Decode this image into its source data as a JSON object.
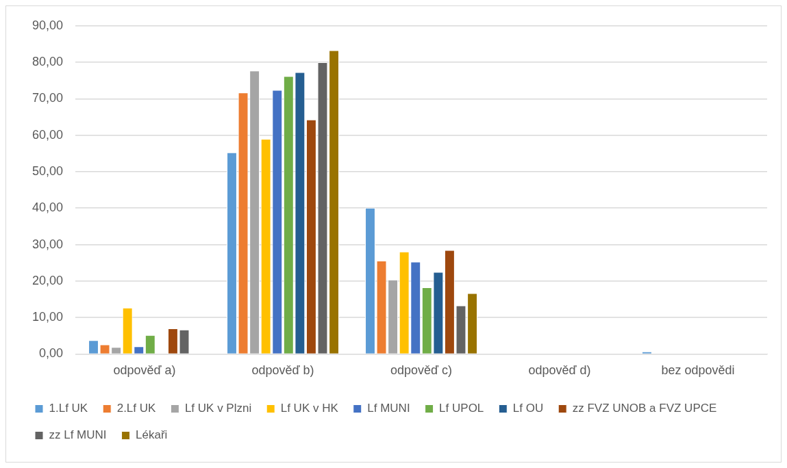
{
  "chart_data": {
    "type": "bar",
    "categories": [
      "odpověď a)",
      "odpověď b)",
      "odpověď c)",
      "odpověď d)",
      "bez odpovědi"
    ],
    "series": [
      {
        "name": "1.Lf UK",
        "color": "#5b9bd5",
        "values": [
          3.8,
          55.3,
          40.1,
          0,
          0.7
        ]
      },
      {
        "name": "2.Lf UK",
        "color": "#ed7d31",
        "values": [
          2.6,
          71.7,
          25.6,
          0,
          0
        ]
      },
      {
        "name": "Lf UK v Plzni",
        "color": "#a5a5a5",
        "values": [
          1.9,
          77.7,
          20.4,
          0,
          0
        ]
      },
      {
        "name": "Lf UK v HK",
        "color": "#ffc000",
        "values": [
          12.7,
          59.0,
          28.1,
          0,
          0
        ]
      },
      {
        "name": "Lf MUNI",
        "color": "#4472c4",
        "values": [
          2.1,
          72.4,
          25.3,
          0,
          0
        ]
      },
      {
        "name": "Lf UPOL",
        "color": "#70ad47",
        "values": [
          5.2,
          76.2,
          18.3,
          0,
          0
        ]
      },
      {
        "name": "Lf OU",
        "color": "#255e91",
        "values": [
          0,
          77.3,
          22.5,
          0,
          0
        ]
      },
      {
        "name": "zz FVZ UNOB a FVZ UPCE",
        "color": "#9e480e",
        "values": [
          7.0,
          64.3,
          28.5,
          0,
          0
        ]
      },
      {
        "name": "zz Lf MUNI",
        "color": "#636363",
        "values": [
          6.7,
          80.0,
          13.3,
          0,
          0
        ]
      },
      {
        "name": "Lékaři",
        "color": "#997300",
        "values": [
          0,
          83.3,
          16.7,
          0,
          0
        ]
      }
    ],
    "ylim": [
      0,
      90
    ],
    "yticks": [
      {
        "value": 0,
        "label": "0,00"
      },
      {
        "value": 10,
        "label": "10,00"
      },
      {
        "value": 20,
        "label": "20,00"
      },
      {
        "value": 30,
        "label": "30,00"
      },
      {
        "value": 40,
        "label": "40,00"
      },
      {
        "value": 50,
        "label": "50,00"
      },
      {
        "value": 60,
        "label": "60,00"
      },
      {
        "value": 70,
        "label": "70,00"
      },
      {
        "value": 80,
        "label": "80,00"
      },
      {
        "value": 90,
        "label": "90,00"
      }
    ],
    "grid": "y",
    "legend": "bottom"
  }
}
